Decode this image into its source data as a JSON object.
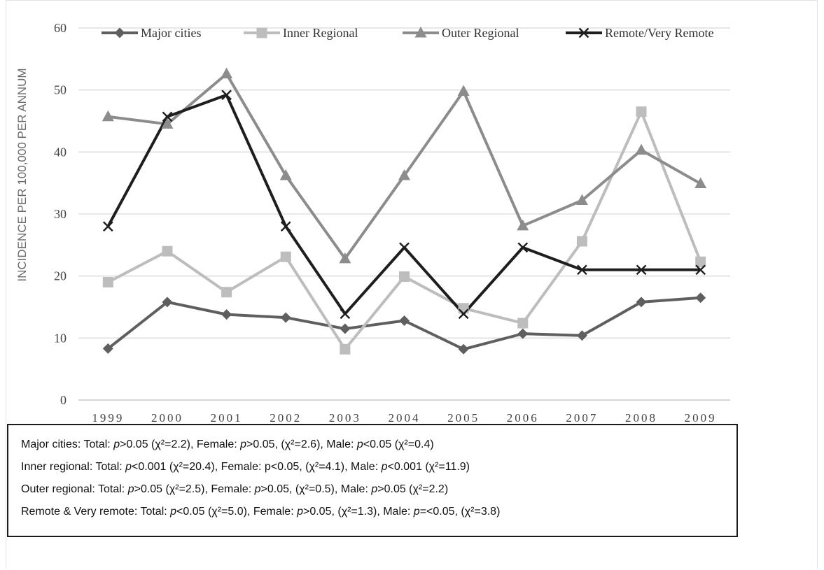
{
  "chart_data": {
    "type": "line",
    "title": "",
    "ylabel": "INCIDENCE PER 100,000 PER ANNUM",
    "xlabel": "",
    "ylim": [
      0,
      60
    ],
    "yticks": [
      0,
      10,
      20,
      30,
      40,
      50,
      60
    ],
    "grid": "horizontal",
    "legend": "top",
    "x": [
      "1999",
      "2000",
      "2001",
      "2002",
      "2003",
      "2004",
      "2005",
      "2006",
      "2007",
      "2008",
      "2009"
    ],
    "series": [
      {
        "name": "Major cities",
        "marker": "diamond",
        "color": "#5f5f5f",
        "values": [
          8.3,
          15.8,
          13.8,
          13.3,
          11.5,
          12.8,
          8.2,
          10.7,
          10.4,
          15.8,
          16.5
        ]
      },
      {
        "name": "Inner Regional",
        "marker": "square",
        "color": "#bdbdbd",
        "values": [
          19.0,
          24.0,
          17.4,
          23.1,
          8.2,
          19.9,
          14.8,
          12.4,
          25.6,
          46.5,
          22.3
        ]
      },
      {
        "name": "Outer Regional",
        "marker": "triangle",
        "color": "#8c8c8c",
        "values": [
          45.7,
          44.5,
          52.6,
          36.2,
          22.8,
          36.2,
          49.8,
          28.1,
          32.2,
          40.3,
          34.9
        ]
      },
      {
        "name": "Remote/Very Remote",
        "marker": "x",
        "color": "#1e1e1e",
        "values": [
          28.0,
          45.7,
          49.2,
          28.0,
          13.9,
          24.6,
          13.9,
          24.6,
          21.0,
          21.0,
          21.0
        ]
      }
    ]
  },
  "stats": [
    {
      "segments": [
        {
          "t": "Major cities: Total: "
        },
        {
          "t": "p",
          "i": true
        },
        {
          "t": ">0.05 (χ²=2.2), Female: "
        },
        {
          "t": "p",
          "i": true
        },
        {
          "t": ">0.05, (χ²=2.6), Male: "
        },
        {
          "t": "p",
          "i": true
        },
        {
          "t": "<0.05 (χ²=0.4)"
        }
      ]
    },
    {
      "segments": [
        {
          "t": "Inner regional: Total: "
        },
        {
          "t": "p",
          "i": true
        },
        {
          "t": "<0.001 (χ²=20.4), Female: p<0.05, (χ²=4.1), Male: "
        },
        {
          "t": "p",
          "i": true
        },
        {
          "t": "<0.001 (χ²=11.9)"
        }
      ]
    },
    {
      "segments": [
        {
          "t": "Outer regional: Total: "
        },
        {
          "t": "p",
          "i": true
        },
        {
          "t": ">0.05 (χ²=2.5), Female: "
        },
        {
          "t": "p",
          "i": true
        },
        {
          "t": ">0.05, (χ²=0.5), Male: "
        },
        {
          "t": "p",
          "i": true
        },
        {
          "t": ">0.05 (χ²=2.2)"
        }
      ]
    },
    {
      "segments": [
        {
          "t": "Remote & Very remote: Total: "
        },
        {
          "t": "p",
          "i": true
        },
        {
          "t": "<0.05 (χ²=5.0), Female: "
        },
        {
          "t": "p",
          "i": true
        },
        {
          "t": ">0.05, (χ²=1.3), Male: "
        },
        {
          "t": "p",
          "i": true
        },
        {
          "t": "=<0.05, (χ²=3.8)"
        }
      ]
    }
  ]
}
